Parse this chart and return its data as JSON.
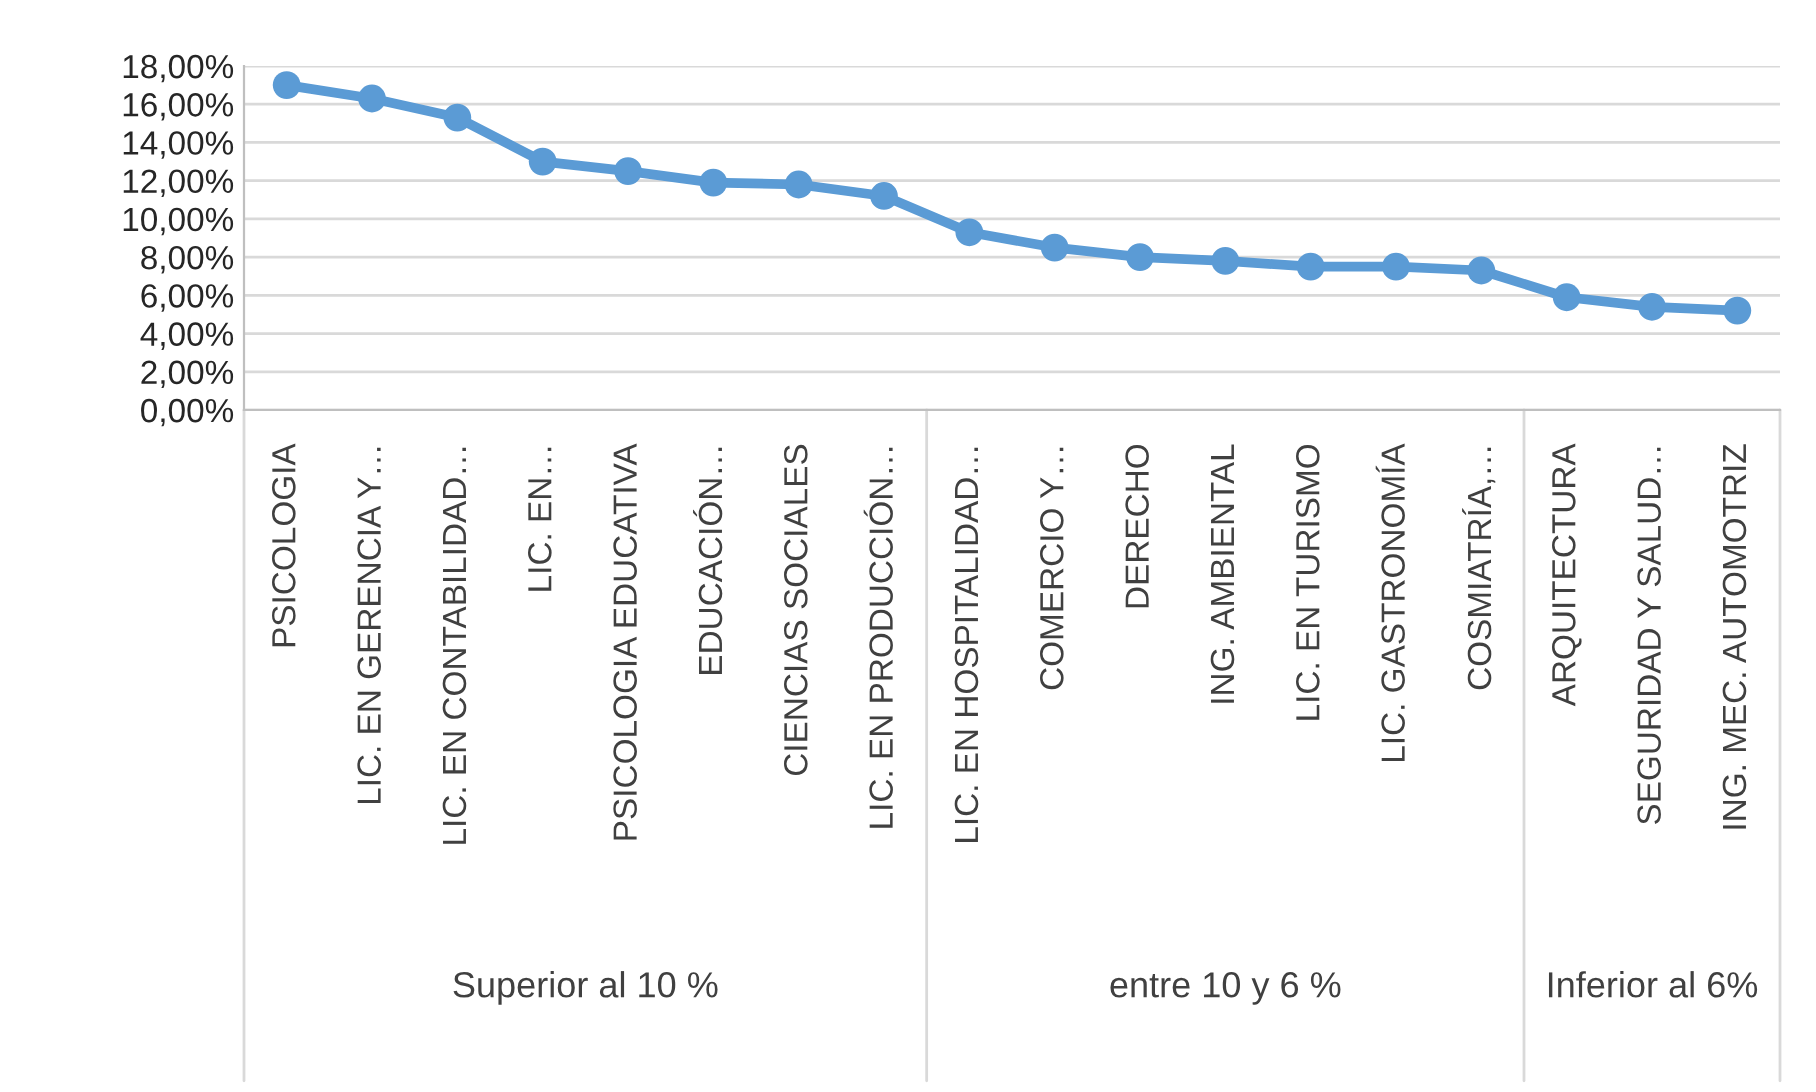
{
  "chart_data": {
    "type": "line",
    "categories": [
      "PSICOLOGIA",
      "LIC. EN GERENCIA Y…",
      "LIC. EN CONTABILIDAD…",
      "LIC. EN…",
      "PSICOLOGIA EDUCATIVA",
      "EDUCACIÓN…",
      "CIENCIAS SOCIALES",
      "LIC. EN PRODUCCIÓN…",
      "LIC. EN HOSPITALIDAD…",
      "COMERCIO Y…",
      "DERECHO",
      "ING. AMBIENTAL",
      "LIC. EN TURISMO",
      "LIC. GASTRONOMÍA",
      "COSMIATRÍA,…",
      "ARQUITECTURA",
      "SEGURIDAD Y SALUD…",
      "ING. MEC. AUTOMOTRIZ"
    ],
    "series": [
      {
        "color": "#5b9bd5",
        "values": [
          17.0,
          16.3,
          15.3,
          13.0,
          12.5,
          11.9,
          11.8,
          11.2,
          9.3,
          8.5,
          8.0,
          7.8,
          7.5,
          7.5,
          7.3,
          5.9,
          5.4,
          5.2
        ]
      }
    ],
    "ylim": [
      0,
      18
    ],
    "yticks": [
      {
        "value": 0,
        "label": "0,00%"
      },
      {
        "value": 2,
        "label": "2,00%"
      },
      {
        "value": 4,
        "label": "4,00%"
      },
      {
        "value": 6,
        "label": "6,00%"
      },
      {
        "value": 8,
        "label": "8,00%"
      },
      {
        "value": 10,
        "label": "10,00%"
      },
      {
        "value": 12,
        "label": "12,00%"
      },
      {
        "value": 14,
        "label": "14,00%"
      },
      {
        "value": 16,
        "label": "16,00%"
      },
      {
        "value": 18,
        "label": "18,00%"
      }
    ],
    "grid": "y",
    "marker": "circle",
    "line_style": "solid",
    "annotations": [
      "Superior al 10 %",
      "entre 10 y 6 %",
      "Inferior al 6%"
    ]
  }
}
